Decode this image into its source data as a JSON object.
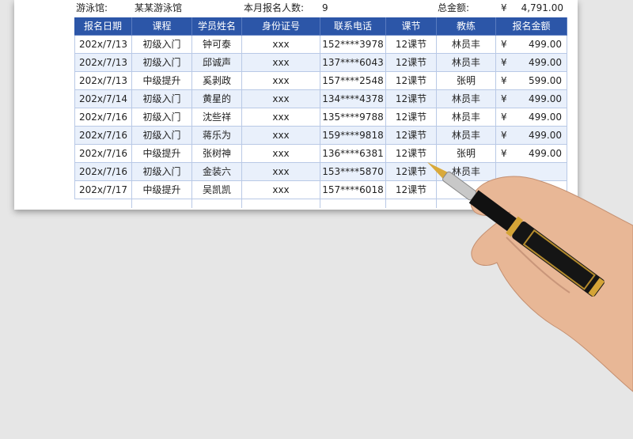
{
  "info": {
    "venue_label": "游泳馆:",
    "venue": "某某游泳馆",
    "count_label": "本月报名人数:",
    "count": "9",
    "total_label": "总金额:",
    "currency": "¥",
    "total": "4,791.00"
  },
  "table": {
    "headers": [
      "报名日期",
      "课程",
      "学员姓名",
      "身份证号",
      "联系电话",
      "课节",
      "教练",
      "报名金额"
    ],
    "rows": [
      {
        "cells": [
          "202x/7/13",
          "初级入门",
          "钟可泰",
          "xxx",
          "152****3978",
          "12课节",
          "林员丰"
        ],
        "currency": "¥",
        "amount": "499.00"
      },
      {
        "cells": [
          "202x/7/13",
          "初级入门",
          "邱诚声",
          "xxx",
          "137****6043",
          "12课节",
          "林员丰"
        ],
        "currency": "¥",
        "amount": "499.00"
      },
      {
        "cells": [
          "202x/7/13",
          "中级提升",
          "奚剥政",
          "xxx",
          "157****2548",
          "12课节",
          "张明"
        ],
        "currency": "¥",
        "amount": "599.00"
      },
      {
        "cells": [
          "202x/7/14",
          "初级入门",
          "黄星的",
          "xxx",
          "134****4378",
          "12课节",
          "林员丰"
        ],
        "currency": "¥",
        "amount": "499.00"
      },
      {
        "cells": [
          "202x/7/16",
          "初级入门",
          "沈些祥",
          "xxx",
          "135****9788",
          "12课节",
          "林员丰"
        ],
        "currency": "¥",
        "amount": "499.00"
      },
      {
        "cells": [
          "202x/7/16",
          "初级入门",
          "蒋乐为",
          "xxx",
          "159****9818",
          "12课节",
          "林员丰"
        ],
        "currency": "¥",
        "amount": "499.00"
      },
      {
        "cells": [
          "202x/7/16",
          "中级提升",
          "张树神",
          "xxx",
          "136****6381",
          "12课节",
          "张明"
        ],
        "currency": "¥",
        "amount": "499.00"
      },
      {
        "cells": [
          "202x/7/16",
          "初级入门",
          "金装六",
          "xxx",
          "153****5870",
          "12课节",
          "林员丰"
        ]
      },
      {
        "cells": [
          "202x/7/17",
          "中级提升",
          "吴凯凯",
          "xxx",
          "157****6018",
          "12课节"
        ]
      }
    ]
  }
}
